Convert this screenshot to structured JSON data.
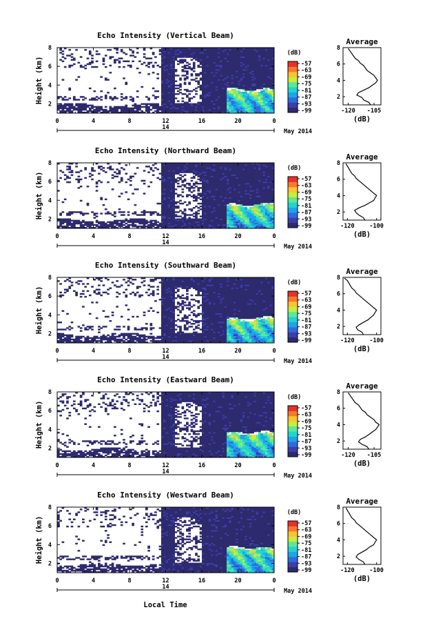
{
  "figure": {
    "bottom_xlabel": "Local Time",
    "date_label": "May 2014",
    "day_label": "14",
    "colorbar_unit": "(dB)",
    "colorbar_ticks": [
      "-57",
      "-63",
      "-69",
      "-75",
      "-81",
      "-87",
      "-93",
      "-99"
    ],
    "colormap": [
      "#2e2a6e",
      "#3b3fa8",
      "#2f6be0",
      "#1ea4e8",
      "#22d3d0",
      "#5ce89a",
      "#c7ee3a",
      "#fdc230",
      "#f77a2a",
      "#e8302a"
    ],
    "color_masked": "#ffffff"
  },
  "chart_data": [
    {
      "type": "heatmap",
      "title": "Echo Intensity (Vertical Beam)",
      "ylabel": "Height (km)",
      "x_ticks": [
        "0",
        "4",
        "8",
        "12",
        "16",
        "20",
        "0"
      ],
      "y_ticks": [
        "2",
        "4",
        "6",
        "8"
      ],
      "xlim_hours": [
        0,
        24
      ],
      "ylim_km": [
        1,
        8
      ],
      "zlim_db": [
        -99,
        -57
      ],
      "profile": {
        "title": "Average",
        "xlabel": "(dB)",
        "x_ticks": [
          "-120",
          "-105"
        ],
        "y_ticks": [
          "2",
          "4",
          "6",
          "8"
        ],
        "xlim_db": [
          -123,
          -101
        ],
        "height_km": [
          1.0,
          1.3,
          1.6,
          1.9,
          2.2,
          2.5,
          2.8,
          3.1,
          3.4,
          3.7,
          4.0,
          4.3,
          4.6,
          4.9,
          5.2,
          5.5,
          5.8,
          6.1,
          6.4,
          6.7,
          7.0,
          7.3,
          7.6,
          7.9
        ],
        "avg_db": [
          -107,
          -108,
          -111,
          -112,
          -115,
          -114,
          -111,
          -108,
          -106,
          -104,
          -103,
          -104,
          -105,
          -107,
          -109,
          -110,
          -111,
          -113,
          -114,
          -116,
          -117,
          -118,
          -119,
          -120
        ]
      }
    },
    {
      "type": "heatmap",
      "title": "Echo Intensity (Northward Beam)",
      "ylabel": "Height (km)",
      "x_ticks": [
        "0",
        "4",
        "8",
        "12",
        "16",
        "20",
        "0"
      ],
      "y_ticks": [
        "2",
        "4",
        "6",
        "8"
      ],
      "xlim_hours": [
        0,
        24
      ],
      "ylim_km": [
        1,
        8
      ],
      "zlim_db": [
        -99,
        -57
      ],
      "profile": {
        "title": "Average",
        "xlabel": "(dB)",
        "x_ticks": [
          "-120",
          "-100"
        ],
        "y_ticks": [
          "2",
          "4",
          "6",
          "8"
        ],
        "xlim_db": [
          -123,
          -97
        ],
        "height_km": [
          1.0,
          1.3,
          1.6,
          1.9,
          2.2,
          2.5,
          2.8,
          3.1,
          3.4,
          3.7,
          4.0,
          4.3,
          4.6,
          4.9,
          5.2,
          5.5,
          5.8,
          6.1,
          6.4,
          6.7,
          7.0,
          7.3,
          7.6,
          7.9
        ],
        "avg_db": [
          -108,
          -109,
          -112,
          -114,
          -115,
          -112,
          -108,
          -105,
          -102,
          -101,
          -100,
          -102,
          -104,
          -106,
          -108,
          -110,
          -112,
          -114,
          -115,
          -117,
          -118,
          -119,
          -120,
          -121
        ]
      }
    },
    {
      "type": "heatmap",
      "title": "Echo Intensity (Southward Beam)",
      "ylabel": "Height (km)",
      "x_ticks": [
        "0",
        "4",
        "8",
        "12",
        "16",
        "20",
        "0"
      ],
      "y_ticks": [
        "2",
        "4",
        "6",
        "8"
      ],
      "xlim_hours": [
        0,
        24
      ],
      "ylim_km": [
        1,
        8
      ],
      "zlim_db": [
        -99,
        -57
      ],
      "profile": {
        "title": "Average",
        "xlabel": "(dB)",
        "x_ticks": [
          "-120",
          "-100"
        ],
        "y_ticks": [
          "2",
          "4",
          "6",
          "8"
        ],
        "xlim_db": [
          -123,
          -97
        ],
        "height_km": [
          1.0,
          1.3,
          1.6,
          1.9,
          2.2,
          2.5,
          2.8,
          3.1,
          3.4,
          3.7,
          4.0,
          4.3,
          4.6,
          4.9,
          5.2,
          5.5,
          5.8,
          6.1,
          6.4,
          6.7,
          7.0,
          7.3,
          7.6,
          7.9
        ],
        "avg_db": [
          -109,
          -110,
          -113,
          -114,
          -112,
          -109,
          -106,
          -104,
          -102,
          -101,
          -100,
          -102,
          -104,
          -106,
          -108,
          -110,
          -112,
          -114,
          -115,
          -117,
          -118,
          -119,
          -120,
          -122
        ]
      }
    },
    {
      "type": "heatmap",
      "title": "Echo Intensity (Eastward Beam)",
      "ylabel": "Height (km)",
      "x_ticks": [
        "0",
        "4",
        "8",
        "12",
        "16",
        "20",
        "0"
      ],
      "y_ticks": [
        "2",
        "4",
        "6",
        "8"
      ],
      "xlim_hours": [
        0,
        24
      ],
      "ylim_km": [
        1,
        8
      ],
      "zlim_db": [
        -99,
        -57
      ],
      "profile": {
        "title": "Average",
        "xlabel": "(dB)",
        "x_ticks": [
          "-120",
          "-105"
        ],
        "y_ticks": [
          "2",
          "4",
          "6",
          "8"
        ],
        "xlim_db": [
          -123,
          -101
        ],
        "height_km": [
          1.0,
          1.3,
          1.6,
          1.9,
          2.2,
          2.5,
          2.8,
          3.1,
          3.4,
          3.7,
          4.0,
          4.3,
          4.6,
          4.9,
          5.2,
          5.5,
          5.8,
          6.1,
          6.4,
          6.7,
          7.0,
          7.3,
          7.6,
          7.9
        ],
        "avg_db": [
          -108,
          -109,
          -112,
          -114,
          -113,
          -110,
          -108,
          -106,
          -104,
          -103,
          -102,
          -104,
          -105,
          -107,
          -109,
          -110,
          -112,
          -113,
          -114,
          -116,
          -117,
          -118,
          -119,
          -120
        ]
      }
    },
    {
      "type": "heatmap",
      "title": "Echo Intensity (Westward Beam)",
      "ylabel": "Height (km)",
      "x_ticks": [
        "0",
        "4",
        "8",
        "12",
        "16",
        "20",
        "0"
      ],
      "y_ticks": [
        "2",
        "4",
        "6",
        "8"
      ],
      "xlim_hours": [
        0,
        24
      ],
      "ylim_km": [
        1,
        8
      ],
      "zlim_db": [
        -99,
        -57
      ],
      "profile": {
        "title": "Average",
        "xlabel": "(dB)",
        "x_ticks": [
          "-120",
          "-100"
        ],
        "y_ticks": [
          "2",
          "4",
          "6",
          "8"
        ],
        "xlim_db": [
          -123,
          -97
        ],
        "height_km": [
          1.0,
          1.3,
          1.6,
          1.9,
          2.2,
          2.5,
          2.8,
          3.1,
          3.4,
          3.7,
          4.0,
          4.3,
          4.6,
          4.9,
          5.2,
          5.5,
          5.8,
          6.1,
          6.4,
          6.7,
          7.0,
          7.3,
          7.6,
          7.9
        ],
        "avg_db": [
          -108,
          -109,
          -112,
          -114,
          -113,
          -110,
          -107,
          -105,
          -102,
          -101,
          -100,
          -102,
          -104,
          -106,
          -108,
          -110,
          -112,
          -114,
          -115,
          -117,
          -118,
          -119,
          -120,
          -121
        ]
      }
    }
  ]
}
